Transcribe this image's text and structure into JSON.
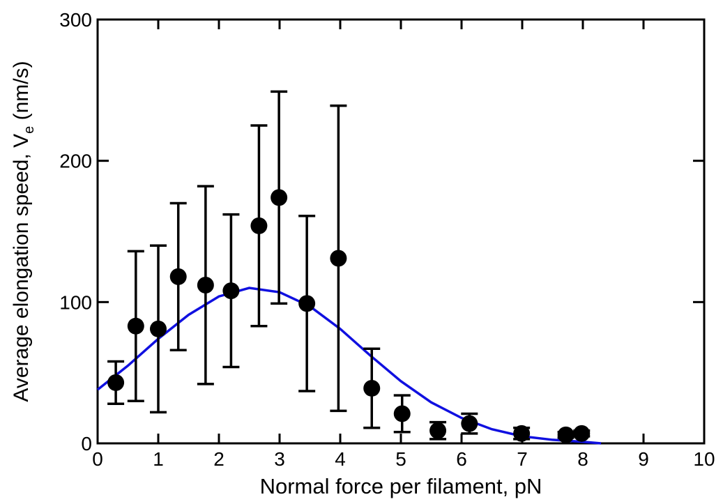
{
  "chart_data": {
    "type": "scatter",
    "xlabel": "Normal force per filament, pN",
    "ylabel": [
      "Average elongation speed, V",
      "e",
      " (nm/s)"
    ],
    "xlim": [
      0,
      10
    ],
    "xticks": [
      0,
      1,
      2,
      3,
      4,
      5,
      6,
      7,
      8,
      9,
      10
    ],
    "ylim": [
      0,
      300
    ],
    "yticks": [
      0,
      100,
      200,
      300
    ],
    "series": [
      {
        "kind": "points",
        "color": "#000000",
        "x": [
          0.3,
          0.63,
          1.0,
          1.33,
          1.78,
          2.2,
          2.66,
          2.99,
          3.45,
          3.97,
          4.52,
          5.02,
          5.61,
          6.13,
          6.99,
          7.72,
          7.98
        ],
        "values": [
          43,
          83,
          81,
          118,
          112,
          108,
          154,
          174,
          99,
          131,
          39,
          21,
          9,
          14,
          7,
          6,
          7
        ],
        "errors": [
          15,
          53,
          59,
          52,
          70,
          54,
          71,
          75,
          62,
          108,
          28,
          13,
          6,
          7,
          4,
          2,
          2
        ]
      },
      {
        "kind": "line",
        "color": "#1010e0",
        "x": [
          0,
          0.5,
          1,
          1.5,
          2,
          2.5,
          3,
          3.5,
          4,
          4.5,
          5,
          5.5,
          6,
          6.5,
          7,
          7.5,
          8,
          8.3
        ],
        "values": [
          38,
          55,
          74,
          91,
          104,
          110,
          107,
          97,
          81,
          62,
          44,
          29,
          18,
          10,
          5,
          2.5,
          1.1,
          0
        ]
      }
    ]
  }
}
